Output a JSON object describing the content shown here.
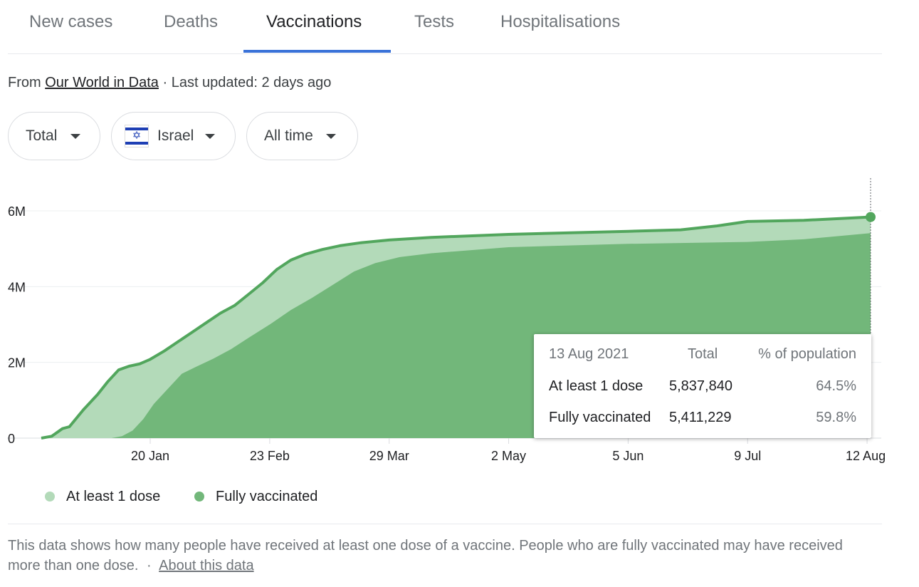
{
  "tabs": [
    {
      "label": "New cases",
      "active": false
    },
    {
      "label": "Deaths",
      "active": false
    },
    {
      "label": "Vaccinations",
      "active": true
    },
    {
      "label": "Tests",
      "active": false
    },
    {
      "label": "Hospitalisations",
      "active": false
    }
  ],
  "source": {
    "prefix": "From",
    "link": "Our World in Data",
    "updated": "· Last updated: 2 days ago"
  },
  "filters": {
    "metric": "Total",
    "country": "Israel",
    "range": "All time"
  },
  "colors": {
    "accent": "#3a72d8",
    "at_least_one": "#b3dab9",
    "fully": "#72b77a",
    "line": "#52a65d"
  },
  "chart_data": {
    "type": "area",
    "x_axis": {
      "start": "2020-12-20",
      "end": "2021-08-13",
      "ticks": [
        {
          "date": "2021-01-20",
          "label": "20 Jan"
        },
        {
          "date": "2021-02-23",
          "label": "23 Feb"
        },
        {
          "date": "2021-03-29",
          "label": "29 Mar"
        },
        {
          "date": "2021-05-02",
          "label": "2 May"
        },
        {
          "date": "2021-06-05",
          "label": "5 Jun"
        },
        {
          "date": "2021-07-09",
          "label": "9 Jul"
        },
        {
          "date": "2021-08-12",
          "label": "12 Aug"
        }
      ]
    },
    "y_axis": {
      "range": [
        0,
        6000000
      ],
      "ticks": [
        {
          "value": 0,
          "label": "0"
        },
        {
          "value": 2000000,
          "label": "2M"
        },
        {
          "value": 4000000,
          "label": "4M"
        },
        {
          "value": 6000000,
          "label": "6M"
        }
      ]
    },
    "grid": true,
    "series": [
      {
        "name": "At least 1 dose",
        "points": [
          [
            "2020-12-20",
            0
          ],
          [
            "2020-12-23",
            50000
          ],
          [
            "2020-12-26",
            250000
          ],
          [
            "2020-12-28",
            300000
          ],
          [
            "2021-01-01",
            750000
          ],
          [
            "2021-01-05",
            1150000
          ],
          [
            "2021-01-08",
            1500000
          ],
          [
            "2021-01-11",
            1800000
          ],
          [
            "2021-01-14",
            1900000
          ],
          [
            "2021-01-17",
            1960000
          ],
          [
            "2021-01-20",
            2080000
          ],
          [
            "2021-01-24",
            2300000
          ],
          [
            "2021-01-28",
            2550000
          ],
          [
            "2021-02-01",
            2800000
          ],
          [
            "2021-02-05",
            3050000
          ],
          [
            "2021-02-09",
            3300000
          ],
          [
            "2021-02-13",
            3500000
          ],
          [
            "2021-02-17",
            3800000
          ],
          [
            "2021-02-21",
            4100000
          ],
          [
            "2021-02-25",
            4450000
          ],
          [
            "2021-03-01",
            4700000
          ],
          [
            "2021-03-05",
            4850000
          ],
          [
            "2021-03-10",
            4980000
          ],
          [
            "2021-03-15",
            5080000
          ],
          [
            "2021-03-21",
            5160000
          ],
          [
            "2021-03-29",
            5230000
          ],
          [
            "2021-04-10",
            5300000
          ],
          [
            "2021-05-02",
            5380000
          ],
          [
            "2021-06-05",
            5460000
          ],
          [
            "2021-06-20",
            5500000
          ],
          [
            "2021-06-30",
            5600000
          ],
          [
            "2021-07-09",
            5720000
          ],
          [
            "2021-07-25",
            5750000
          ],
          [
            "2021-08-13",
            5837840
          ]
        ]
      },
      {
        "name": "Fully vaccinated",
        "points": [
          [
            "2020-12-20",
            0
          ],
          [
            "2021-01-09",
            0
          ],
          [
            "2021-01-12",
            50000
          ],
          [
            "2021-01-15",
            200000
          ],
          [
            "2021-01-18",
            500000
          ],
          [
            "2021-01-21",
            900000
          ],
          [
            "2021-01-25",
            1300000
          ],
          [
            "2021-01-29",
            1700000
          ],
          [
            "2021-02-02",
            1880000
          ],
          [
            "2021-02-07",
            2100000
          ],
          [
            "2021-02-12",
            2350000
          ],
          [
            "2021-02-17",
            2650000
          ],
          [
            "2021-02-23",
            3000000
          ],
          [
            "2021-03-01",
            3380000
          ],
          [
            "2021-03-07",
            3700000
          ],
          [
            "2021-03-13",
            4050000
          ],
          [
            "2021-03-19",
            4400000
          ],
          [
            "2021-03-25",
            4620000
          ],
          [
            "2021-04-01",
            4780000
          ],
          [
            "2021-04-10",
            4880000
          ],
          [
            "2021-05-02",
            5040000
          ],
          [
            "2021-06-05",
            5130000
          ],
          [
            "2021-07-09",
            5180000
          ],
          [
            "2021-07-25",
            5250000
          ],
          [
            "2021-08-13",
            5411229
          ]
        ]
      }
    ],
    "legend": [
      {
        "label": "At least 1 dose",
        "color": "#b3dab9"
      },
      {
        "label": "Fully vaccinated",
        "color": "#72b77a"
      }
    ],
    "legend_position": "bottom-left",
    "tooltip": {
      "date": "13 Aug 2021",
      "col_total": "Total",
      "col_pct": "% of population",
      "rows": [
        {
          "label": "At least 1 dose",
          "total": "5,837,840",
          "pct": "64.5%"
        },
        {
          "label": "Fully vaccinated",
          "total": "5,411,229",
          "pct": "59.8%"
        }
      ]
    }
  },
  "footer": {
    "note": "This data shows how many people have received at least one dose of a vaccine. People who are fully vaccinated may have received more than one dose.",
    "separator": "·",
    "link": "About this data"
  }
}
